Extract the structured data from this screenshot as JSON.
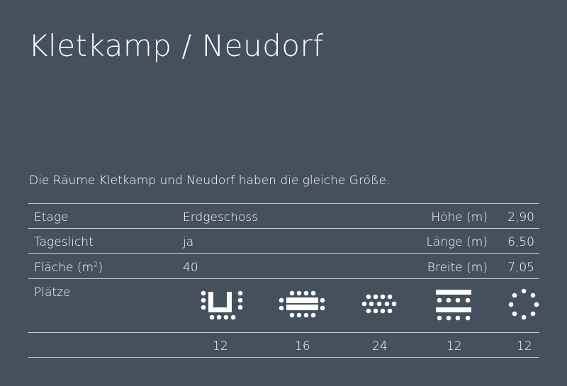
{
  "title": "Kletkamp / Neudorf",
  "intro": "Die Räume Kletkamp und Neudorf haben die gleiche Größe.",
  "rows": [
    {
      "label": "Etage",
      "value": "Erdgeschoss",
      "dim_label": "Höhe (m)",
      "dim_value": "2,90"
    },
    {
      "label": "Tageslicht",
      "value": "ja",
      "dim_label": "Länge (m)",
      "dim_value": "6,50"
    },
    {
      "label": "Fläche (m",
      "label_sup": "2",
      "label_end": ")",
      "value": "40",
      "dim_label": "Breite (m)",
      "dim_value": "7,05"
    }
  ],
  "seats": {
    "label": "Plätze",
    "layouts": [
      {
        "icon": "u-shape-seating-icon",
        "count": "12"
      },
      {
        "icon": "conference-table-seating-icon",
        "count": "16"
      },
      {
        "icon": "theater-seating-icon",
        "count": "24"
      },
      {
        "icon": "classroom-seating-icon",
        "count": "12"
      },
      {
        "icon": "circle-seating-icon",
        "count": "12"
      }
    ]
  },
  "colors": {
    "background": "#44515c",
    "text": "#ffffff",
    "rule": "#c9ced2"
  }
}
